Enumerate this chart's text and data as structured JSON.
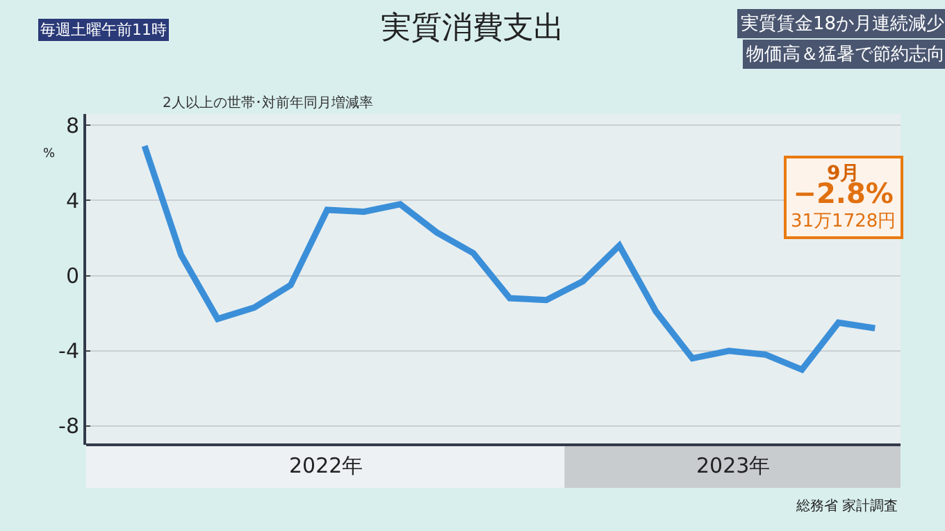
{
  "chart_data": {
    "type": "line",
    "title": "実質消費支出",
    "subtitle": "実質賃金18か月連続減少",
    "ylabel": "%",
    "categories": [
      null,
      null,
      null,
      null,
      null,
      null,
      null,
      null,
      null,
      null,
      null,
      null,
      null,
      null,
      null,
      null,
      null,
      null,
      null,
      null,
      null
    ],
    "series": [
      {
        "color": "#3b8fd8",
        "values": [
          6.9,
          1.1,
          -2.3,
          -1.7,
          -0.5,
          3.5,
          3.4,
          3.8,
          2.3,
          1.2,
          -1.2,
          -1.3,
          -0.3,
          1.6,
          -1.9,
          -4.4,
          -4.0,
          -4.2,
          -5.0,
          -2.5,
          -2.8
        ]
      }
    ],
    "ylim": [
      -9,
      8.6
    ],
    "yticks": [
      8,
      4,
      0,
      -4,
      -8
    ],
    "grid": "y",
    "marker": "none",
    "line_style": "solid",
    "annotations": [
      "2人以上の世帯･対前年同月増減率",
      "2022年",
      "2023年",
      "総務省 家計調査",
      "毎週土曜午前11時",
      "9月\n−2.8%\n31万1728円",
      "物価高＆猛暑で節約志向"
    ]
  }
}
